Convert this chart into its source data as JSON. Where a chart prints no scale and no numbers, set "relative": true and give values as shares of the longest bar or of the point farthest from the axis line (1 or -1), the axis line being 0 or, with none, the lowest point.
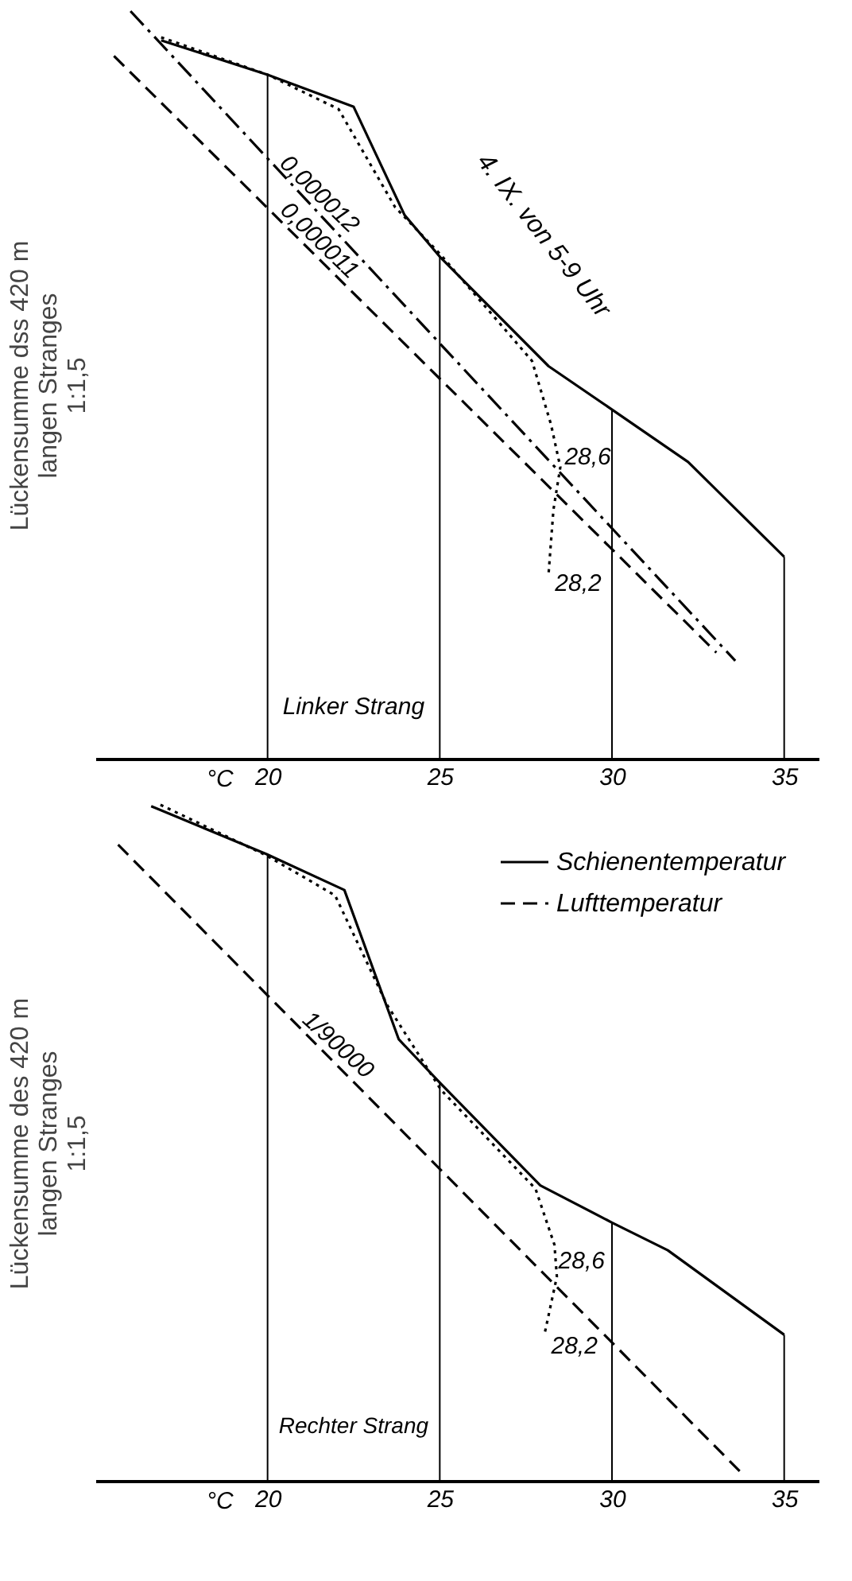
{
  "chart_data": [
    {
      "type": "line",
      "relative": true,
      "xlabel": "°C",
      "ylabel": "Lückensumme dss 420 m\nlangen Stranges\n1:1,5",
      "xlim": [
        15,
        36
      ],
      "xticks": [
        20,
        25,
        30,
        35
      ],
      "series": [
        {
          "color": "#000000",
          "line_style": "solid",
          "x": [
            16.91,
            20,
            22.5,
            23.98,
            25.03,
            28.16,
            29.97,
            32.21,
            35
          ],
          "values": [
            0.961,
            0.915,
            0.872,
            0.727,
            0.67,
            0.525,
            0.468,
            0.397,
            0.27
          ]
        },
        {
          "color": "#000000",
          "line_style": "dotted",
          "x": [
            16.91,
            20,
            22.06,
            23.7,
            25.03,
            27.68,
            28.23,
            28.5,
            28.3,
            28.16
          ],
          "values": [
            0.965,
            0.915,
            0.869,
            0.738,
            0.674,
            0.532,
            0.447,
            0.39,
            0.333,
            0.248
          ]
        },
        {
          "color": "#000000",
          "line_style": "dashdot",
          "x": [
            16.02,
            33.58
          ],
          "values": [
            1.0,
            0.131
          ]
        },
        {
          "color": "#000000",
          "line_style": "dashed",
          "x": [
            15.54,
            33.03
          ],
          "values": [
            0.94,
            0.142
          ]
        }
      ],
      "ref_lines": [
        {
          "axis": "x",
          "value": 20
        },
        {
          "axis": "x",
          "value": 25
        },
        {
          "axis": "x",
          "value": 30
        },
        {
          "axis": "x",
          "value": 35
        }
      ],
      "annotations": [
        {
          "text": "0,000012",
          "x": 21.23,
          "y": 0.742
        },
        {
          "text": "0,000011",
          "x": 21.23,
          "y": 0.68
        },
        {
          "text": "28,6",
          "x": 28.44,
          "y": 0.387
        },
        {
          "text": "28,2",
          "x": 28.16,
          "y": 0.248
        },
        "4. IX. von 5-9 Uhr",
        "Linker Strang"
      ]
    },
    {
      "type": "line",
      "relative": true,
      "xlabel": "°C",
      "ylabel": "Lückensumme des 420 m\nlangen Stranges\n1:1,5",
      "xlim": [
        15,
        36
      ],
      "xticks": [
        20,
        25,
        30,
        35
      ],
      "legend": "top right",
      "series": [
        {
          "name": "Schienentemperatur",
          "color": "#000000",
          "line_style": "solid",
          "x": [
            16.62,
            19.97,
            22.23,
            23.81,
            25.04,
            27.92,
            30.0,
            31.62,
            35.0
          ],
          "values": [
            0.998,
            0.927,
            0.874,
            0.653,
            0.587,
            0.437,
            0.382,
            0.341,
            0.216
          ]
        },
        {
          "color": "#000000",
          "line_style": "dotted",
          "x": [
            16.89,
            19.97,
            21.96,
            23.47,
            25.04,
            27.78,
            28.33,
            28.4,
            28.05
          ],
          "values": [
            1.0,
            0.925,
            0.866,
            0.704,
            0.578,
            0.432,
            0.349,
            0.302,
            0.219
          ]
        },
        {
          "name": "Lufttemperatur",
          "color": "#000000",
          "line_style": "dashed",
          "x": [
            15.66,
            33.81
          ],
          "values": [
            0.941,
            0.009
          ]
        }
      ],
      "ref_lines": [
        {
          "axis": "x",
          "value": 20
        },
        {
          "axis": "x",
          "value": 25
        },
        {
          "axis": "x",
          "value": 30
        },
        {
          "axis": "x",
          "value": 35
        }
      ],
      "annotations": [
        {
          "text": "1/90000",
          "x": 21.75,
          "y": 0.628
        },
        {
          "text": "28,6",
          "x": 28.26,
          "y": 0.302
        },
        {
          "text": "28,2",
          "x": 28.05,
          "y": 0.219
        },
        "Rechter Strang"
      ]
    }
  ]
}
